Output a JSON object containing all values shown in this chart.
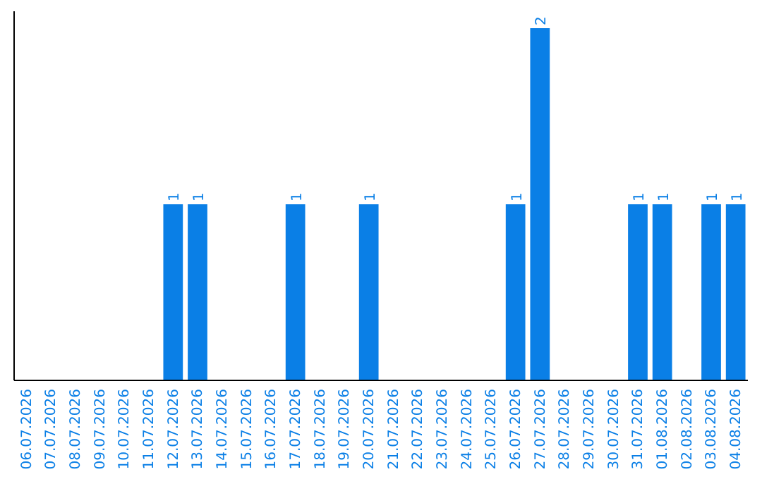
{
  "chart_data": {
    "type": "bar",
    "categories": [
      "06.07.2026",
      "07.07.2026",
      "08.07.2026",
      "09.07.2026",
      "10.07.2026",
      "11.07.2026",
      "12.07.2026",
      "13.07.2026",
      "14.07.2026",
      "15.07.2026",
      "16.07.2026",
      "17.07.2026",
      "18.07.2026",
      "19.07.2026",
      "20.07.2026",
      "21.07.2026",
      "22.07.2026",
      "23.07.2026",
      "24.07.2026",
      "25.07.2026",
      "26.07.2026",
      "27.07.2026",
      "28.07.2026",
      "29.07.2026",
      "30.07.2026",
      "31.07.2026",
      "01.08.2026",
      "02.08.2026",
      "03.08.2026",
      "04.08.2026"
    ],
    "values": [
      0,
      0,
      0,
      0,
      0,
      0,
      1,
      1,
      0,
      0,
      0,
      1,
      0,
      0,
      1,
      0,
      0,
      0,
      0,
      0,
      1,
      2,
      0,
      0,
      0,
      1,
      1,
      0,
      1,
      1
    ],
    "value_labels": [
      null,
      null,
      null,
      null,
      null,
      null,
      "1",
      "1",
      null,
      null,
      null,
      "1",
      null,
      null,
      "1",
      null,
      null,
      null,
      null,
      null,
      "1",
      "2",
      null,
      null,
      null,
      "1",
      "1",
      null,
      "1",
      "1"
    ],
    "color": "#0a7fe6",
    "tick_labels": "x"
  }
}
